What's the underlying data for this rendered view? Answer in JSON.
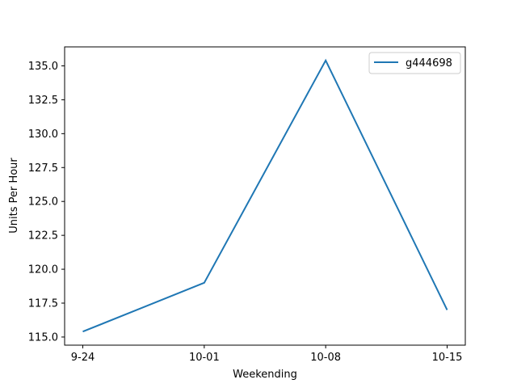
{
  "chart_data": {
    "type": "line",
    "categories": [
      "9-24",
      "10-01",
      "10-08",
      "10-15"
    ],
    "series": [
      {
        "name": "g444698",
        "values": [
          115.4,
          119.0,
          135.4,
          117.0
        ],
        "color": "#1f77b4"
      }
    ],
    "xlabel": "Weekending",
    "ylabel": "Units Per Hour",
    "ylim": [
      114.4,
      136.4
    ],
    "yticks": [
      "115.0",
      "117.5",
      "120.0",
      "122.5",
      "125.0",
      "127.5",
      "130.0",
      "132.5",
      "135.0"
    ],
    "legend_position": "top-right",
    "grid": false
  }
}
